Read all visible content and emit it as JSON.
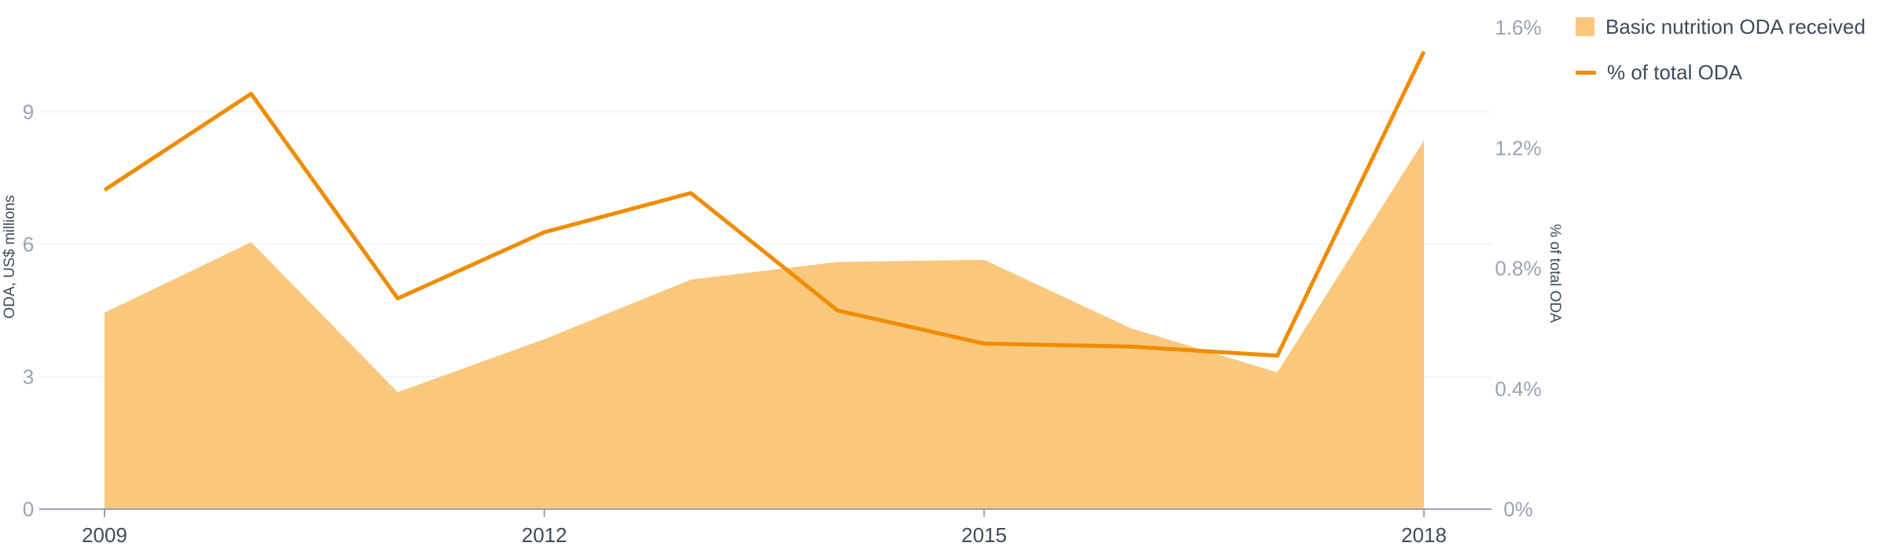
{
  "chart_data": {
    "type": "area",
    "x": [
      2009,
      2010,
      2011,
      2012,
      2013,
      2014,
      2015,
      2016,
      2017,
      2018
    ],
    "series": [
      {
        "name": "Basic nutrition ODA received",
        "type": "area",
        "axis": "left",
        "values": [
          4.45,
          6.05,
          2.65,
          3.85,
          5.2,
          5.6,
          5.65,
          4.1,
          3.1,
          8.35
        ]
      },
      {
        "name": "% of total ODA",
        "type": "line",
        "axis": "right",
        "values": [
          1.06,
          1.38,
          0.7,
          0.92,
          1.05,
          0.66,
          0.55,
          0.54,
          0.51,
          1.52
        ]
      }
    ],
    "ylabel": "ODA, US$ millions",
    "ylabel_right": "% of total ODA",
    "ylim": [
      0,
      11
    ],
    "ylim_right": [
      0,
      1.6
    ],
    "yticks": [
      "0",
      "3",
      "6",
      "9"
    ],
    "yticks_right": [
      "0%",
      "0.4%",
      "0.8%",
      "1.2%",
      "1.6%"
    ],
    "xticks": [
      "2009",
      "2012",
      "2015",
      "2018"
    ],
    "grid": true,
    "legend_position": "top-right",
    "colors": {
      "area": "#fac87c",
      "line": "#f08c00",
      "grid": "#eceef2",
      "axis": "#9aa3b3"
    }
  }
}
